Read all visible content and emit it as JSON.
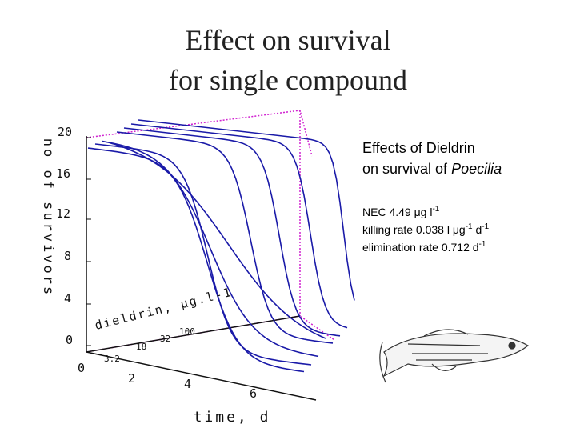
{
  "title": [
    "Effect on survival",
    "for single compound"
  ],
  "plot": {
    "y_axis_label": "no of survivors",
    "y_ticks": [
      "20",
      "16",
      "12",
      "8",
      "4",
      "0"
    ],
    "x_axis_label": "time, d",
    "x_ticks": [
      "0",
      "2",
      "4",
      "6"
    ],
    "z_axis_label": "dieldrin, μg.l-1",
    "z_ticks": [
      "3.2",
      "18",
      "32",
      "100"
    ]
  },
  "caption": {
    "heading": "Effects of Dieldrin",
    "subheading": "on survival of ",
    "species": "Poecilia",
    "lines": [
      [
        {
          "t": "NEC 4.49 μg l"
        },
        {
          "sup": "-1"
        }
      ],
      [
        {
          "t": "killing rate 0.038 l μg"
        },
        {
          "sup": "-1"
        },
        {
          "t": " d"
        },
        {
          "sup": "-1"
        }
      ],
      [
        {
          "t": "elimination rate 0.712 d"
        },
        {
          "sup": "-1"
        }
      ]
    ]
  }
}
